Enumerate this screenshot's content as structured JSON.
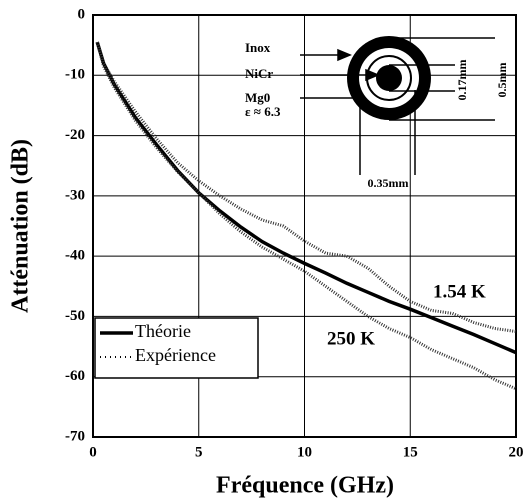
{
  "chart_data": {
    "type": "line",
    "xlabel": "Fréquence (GHz)",
    "ylabel": "Atténuation (dB)",
    "x": [
      0.2,
      0.5,
      1,
      2,
      3,
      4,
      5,
      6,
      7,
      8,
      9,
      10,
      11,
      12,
      13,
      14,
      15,
      16,
      17,
      18,
      19,
      20
    ],
    "series": [
      {
        "name": "Théorie",
        "color": "#000000",
        "style": "solid",
        "values": [
          -4.5,
          -8,
          -11.5,
          -17,
          -21.5,
          -25.8,
          -29.5,
          -32.5,
          -35.2,
          -37.6,
          -39.5,
          -41.2,
          -42.8,
          -44.5,
          -46,
          -47.5,
          -48.8,
          -50.2,
          -51.6,
          -53,
          -54.5,
          -56
        ]
      },
      {
        "name": "1.54 K",
        "color": "#333333",
        "style": "dots",
        "values": [
          -4.5,
          -8,
          -11,
          -16,
          -20.5,
          -24.5,
          -27.5,
          -30,
          -32.2,
          -34,
          -35,
          -37.5,
          -39.5,
          -40,
          -42,
          -45,
          -47.5,
          -49,
          -49.5,
          -51,
          -52,
          -52.5
        ]
      },
      {
        "name": "250 K",
        "color": "#333333",
        "style": "dots",
        "values": [
          -4.5,
          -8.5,
          -12,
          -17.5,
          -22,
          -26,
          -29.5,
          -33,
          -36,
          -38.5,
          -40.5,
          -42.5,
          -45,
          -47.5,
          -50,
          -52,
          -53.5,
          -55.5,
          -57,
          -58.5,
          -60.5,
          -62
        ]
      }
    ],
    "legend": [
      {
        "label": "Théorie",
        "style": "solid"
      },
      {
        "label": "Expérience",
        "style": "dots"
      }
    ],
    "xlim": [
      0,
      20
    ],
    "xticks": [
      0,
      5,
      10,
      15,
      20
    ],
    "ylim": [
      -70,
      0
    ],
    "yticks": [
      0,
      -10,
      -20,
      -30,
      -40,
      -50,
      -60,
      -70
    ],
    "grid": true,
    "inset": {
      "inox": "Inox",
      "nicr": "NiCr",
      "mgo": "Mg0",
      "eps": "ε ≈ 6.3",
      "d1": "0.17mm",
      "d2": "0.5mm",
      "d3": "0.35mm"
    }
  }
}
